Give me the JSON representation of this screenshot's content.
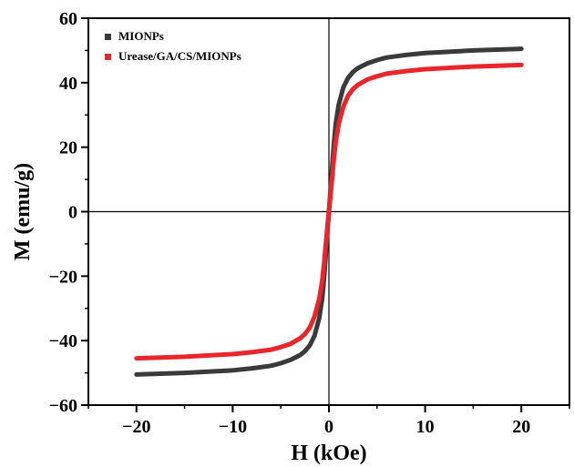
{
  "chart_data": {
    "type": "line",
    "xlabel": "H (kOe)",
    "ylabel": "M (emu/g)",
    "xlim": [
      -25,
      25
    ],
    "ylim": [
      -60,
      60
    ],
    "xticks": [
      -20,
      -10,
      0,
      10,
      20
    ],
    "yticks": [
      -60,
      -40,
      -20,
      0,
      20,
      40,
      60
    ],
    "xtick_labels": [
      "−20",
      "−10",
      "0",
      "10",
      "20"
    ],
    "ytick_labels": [
      "−60",
      "−40",
      "−20",
      "0",
      "20",
      "40",
      "60"
    ],
    "grid": false,
    "zero_lines": true,
    "legend_position": "top-left",
    "series": [
      {
        "name": "MIONPs",
        "color": "#3a3a3a",
        "x": [
          -20,
          -15,
          -10,
          -8,
          -6,
          -5,
          -4,
          -3,
          -2.5,
          -2,
          -1.5,
          -1,
          -0.7,
          -0.5,
          -0.3,
          -0.15,
          0,
          0.15,
          0.3,
          0.5,
          0.7,
          1,
          1.5,
          2,
          2.5,
          3,
          4,
          5,
          6,
          8,
          10,
          15,
          20
        ],
        "y": [
          -50.5,
          -50.0,
          -49.2,
          -48.6,
          -47.8,
          -47.0,
          -46.0,
          -44.5,
          -43.3,
          -41.5,
          -38.5,
          -33.0,
          -27.0,
          -20.5,
          -12.5,
          -6.0,
          0,
          6.0,
          12.5,
          20.5,
          27.0,
          33.0,
          38.5,
          41.5,
          43.3,
          44.5,
          46.0,
          47.0,
          47.8,
          48.6,
          49.2,
          50.0,
          50.5
        ]
      },
      {
        "name": "Urease/GA/CS/MIONPs",
        "color": "#e8262b",
        "x": [
          -20,
          -15,
          -10,
          -8,
          -6,
          -5,
          -4,
          -3,
          -2.5,
          -2,
          -1.5,
          -1,
          -0.7,
          -0.5,
          -0.3,
          -0.15,
          0,
          0.15,
          0.3,
          0.5,
          0.7,
          1,
          1.5,
          2,
          2.5,
          3,
          4,
          5,
          6,
          8,
          10,
          15,
          20
        ],
        "y": [
          -45.5,
          -45.0,
          -44.2,
          -43.6,
          -42.8,
          -42.0,
          -41.0,
          -39.3,
          -38.0,
          -36.0,
          -32.5,
          -27.0,
          -21.5,
          -16.0,
          -9.5,
          -4.5,
          0,
          4.5,
          9.5,
          16.0,
          21.5,
          27.0,
          32.5,
          36.0,
          38.0,
          39.3,
          41.0,
          42.0,
          42.8,
          43.6,
          44.2,
          45.0,
          45.5
        ]
      }
    ]
  }
}
